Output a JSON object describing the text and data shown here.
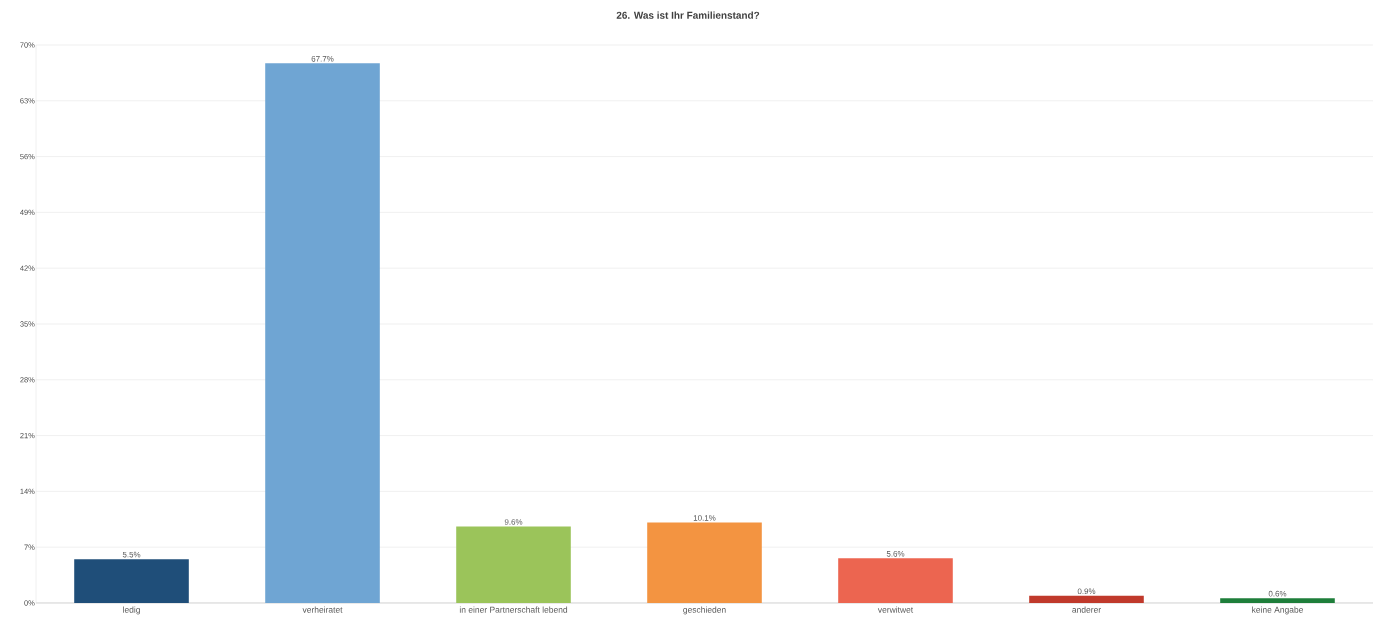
{
  "chart_data": {
    "type": "bar",
    "title": "26. Was ist Ihr Familienstand?",
    "categories": [
      "ledig",
      "verheiratet",
      "in einer Partnerschaft lebend",
      "geschieden",
      "verwitwet",
      "anderer",
      "keine Angabe"
    ],
    "values": [
      5.5,
      67.7,
      9.6,
      10.1,
      5.6,
      0.9,
      0.6
    ],
    "value_labels": [
      "5.5%",
      "67.7%",
      "9.6%",
      "10.1%",
      "5.6%",
      "0.9%",
      "0.6%"
    ],
    "colors": [
      "#1f4e79",
      "#6fa5d3",
      "#9bc45a",
      "#f39441",
      "#ec6550",
      "#c0392b",
      "#1e7e3a"
    ],
    "ylim": [
      0,
      70
    ],
    "yticks": [
      {
        "value": 0,
        "label": "0%"
      },
      {
        "value": 7,
        "label": "7%"
      },
      {
        "value": 14,
        "label": "14%"
      },
      {
        "value": 21,
        "label": "21%"
      },
      {
        "value": 28,
        "label": "28%"
      },
      {
        "value": 35,
        "label": "35%"
      },
      {
        "value": 42,
        "label": "42%"
      },
      {
        "value": 49,
        "label": "49%"
      },
      {
        "value": 56,
        "label": "56%"
      },
      {
        "value": 63,
        "label": "63%"
      },
      {
        "value": 70,
        "label": "70%"
      }
    ],
    "grid": "y"
  }
}
